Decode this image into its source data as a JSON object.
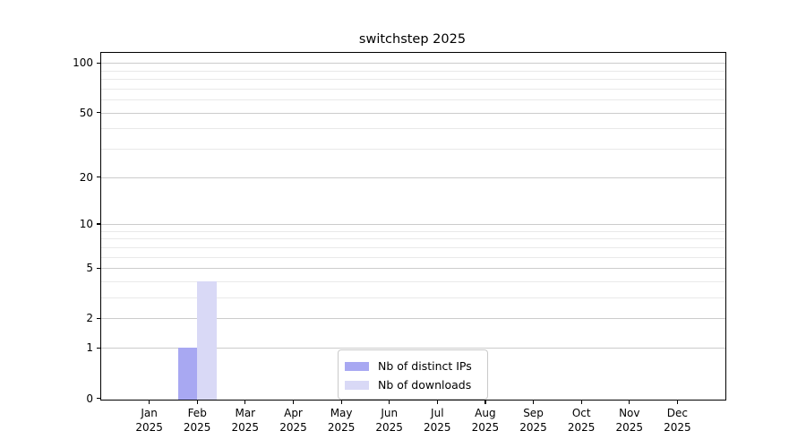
{
  "chart_data": {
    "type": "bar",
    "title": "switchstep 2025",
    "categories": [
      "Jan 2025",
      "Feb 2025",
      "Mar 2025",
      "Apr 2025",
      "May 2025",
      "Jun 2025",
      "Jul 2025",
      "Aug 2025",
      "Sep 2025",
      "Oct 2025",
      "Nov 2025",
      "Dec 2025"
    ],
    "series": [
      {
        "name": "Nb of distinct IPs",
        "color": "#a8a8f2",
        "values": [
          0,
          1,
          0,
          0,
          0,
          0,
          0,
          0,
          0,
          0,
          0,
          0
        ]
      },
      {
        "name": "Nb of downloads",
        "color": "#d9d9f6",
        "values": [
          0,
          4,
          0,
          0,
          0,
          0,
          0,
          0,
          0,
          0,
          0,
          0
        ]
      }
    ],
    "yscale": "log1p",
    "ylim": [
      0,
      115
    ],
    "y_ticks": [
      0,
      1,
      2,
      5,
      10,
      20,
      50,
      100
    ],
    "y_minor_gridlines": [
      3,
      4,
      6,
      7,
      8,
      9,
      30,
      40,
      60,
      70,
      80,
      90
    ],
    "xlabel": "",
    "ylabel": "",
    "grid": "horizontal",
    "legend_position": "bottom-center-inside"
  },
  "colors": {
    "background": "#ffffff",
    "axis": "#000000",
    "grid_major": "#cccccc",
    "grid_minor": "#e9e9e9",
    "legend_border": "#c9c9c9",
    "bar_distinct_ips": "#a8a8f2",
    "bar_downloads": "#d9d9f6"
  }
}
